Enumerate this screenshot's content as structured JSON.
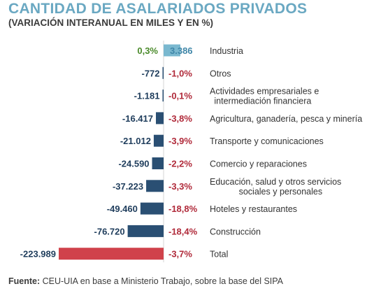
{
  "title": "CANTIDAD DE ASALARIADOS PRIVADOS",
  "subtitle": "(VARIACIÓN INTERANUAL EN MILES Y EN %)",
  "source_label": "Fuente:",
  "source_text": " CEU-UIA en base a Ministerio Trabajo, sobre la base del SIPA",
  "colors": {
    "positive": "#7ab8cf",
    "negative": "#2a4f73",
    "total": "#d0424b",
    "pct_positive": "#4a8a2a",
    "pct_negative": "#b02a3a",
    "value_text": "#1f3d5c",
    "label_text": "#333333"
  },
  "chart_data": {
    "type": "bar",
    "orientation": "horizontal",
    "categories": [
      "Industria",
      "Otros",
      "Actividades empresariales e\nintermediación financiera",
      "Agricultura, ganadería, pesca y minería",
      "Transporte y comunicaciones",
      "Comercio y reparaciones",
      "Educación, salud y otros servicios\nsociales y personales",
      "Hoteles y restaurantes",
      "Construcción",
      "Total"
    ],
    "values": [
      3386,
      -772,
      -1181,
      -16417,
      -21012,
      -24590,
      -37223,
      -49460,
      -76720,
      -223989
    ],
    "value_labels": [
      "3.386",
      "-772",
      "-1.181",
      "-16.417",
      "-21.012",
      "-24.590",
      "-37.223",
      "-49.460",
      "-76.720",
      "-223.989"
    ],
    "pct_labels": [
      "0,3%",
      "-1,0%",
      "-0,1%",
      "-3,8%",
      "-3,9%",
      "-2,2%",
      "-3,3%",
      "-18,8%",
      "-18,4%",
      "-3,7%"
    ],
    "xlim": [
      -223989,
      3386
    ],
    "grid": false,
    "legend": "none"
  }
}
